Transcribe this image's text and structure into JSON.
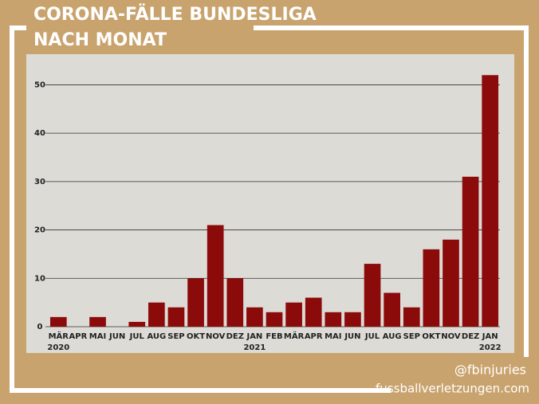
{
  "chart_data": {
    "type": "bar",
    "title": "CORONA-FÄLLE BUNDESLIGA",
    "subtitle": "NACH MONAT",
    "categories": [
      "MÄR 2020",
      "APR",
      "MAI",
      "JUN",
      "JUL",
      "AUG",
      "SEP",
      "OKT",
      "NOV",
      "DEZ",
      "JAN 2021",
      "FEB",
      "MÄR",
      "APR",
      "MAI",
      "JUN",
      "JUL",
      "AUG",
      "SEP",
      "OKT",
      "NOV",
      "DEZ",
      "JAN 2022"
    ],
    "values": [
      2,
      0,
      2,
      0,
      1,
      5,
      4,
      10,
      21,
      10,
      4,
      3,
      5,
      6,
      3,
      3,
      13,
      7,
      4,
      16,
      18,
      31,
      52
    ],
    "color": "#8b0a0a",
    "ylim": [
      0,
      56
    ],
    "yticks": [
      0,
      10,
      20,
      30,
      40,
      50
    ],
    "grid": true,
    "handle": "@fbinjuries",
    "website": "fussballverletzungen.com"
  }
}
